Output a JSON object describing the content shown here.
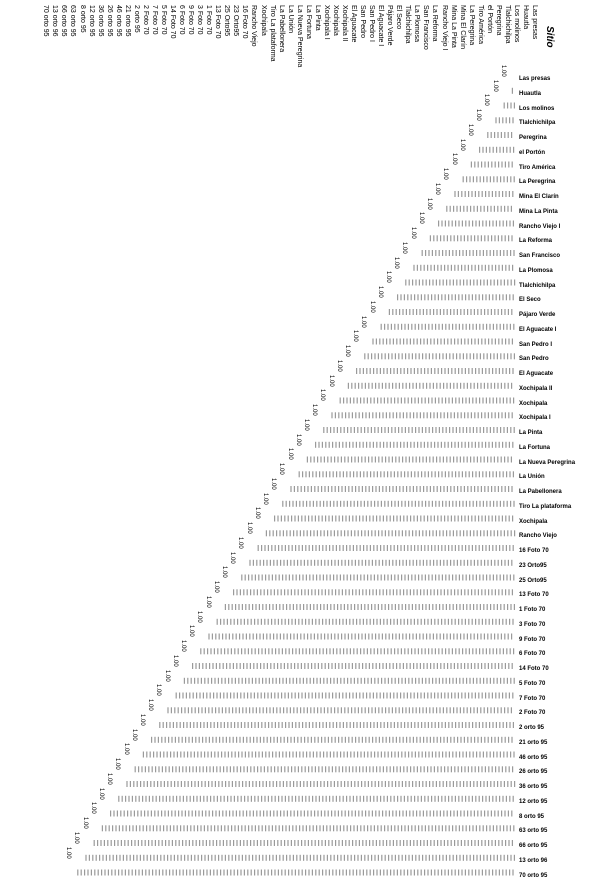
{
  "title": "Sitio",
  "highlight_color": "#f8ec1e",
  "column_headers": [
    "Las presas",
    "Huautla",
    "Los molinos",
    "Tlalchichilpa",
    "Peregrina",
    "el Portón",
    "Tiro América",
    "La Peregrina",
    "Mina El Clarín",
    "Mina La Pinta",
    "Rancho Viejo I",
    "La Reforma",
    "San Francisco",
    "La Plomosa",
    "Tlalchichilpa",
    "El Seco",
    "Pájaro Verde",
    "El Aguacate I",
    "San Pedro I",
    "San Pedro",
    "El Aguacate",
    "Xochipala II",
    "Xochipala",
    "Xochipala I",
    "La Pinta",
    "La Fortuna",
    "La Nueva Peregrina",
    "La Unión",
    "La Pabellonera",
    "Tiro La plataforma",
    "Xochipala",
    "Rancho Viejo",
    "16 Foto 70",
    "23 Orto95",
    "25 Orto95",
    "13 Foto 70",
    "1 Foto 70",
    "3 Foto 70",
    "9 Foto 70",
    "6 Foto 70",
    "14 Foto 70",
    "5 Foto 70",
    "7 Foto 70",
    "2 Foto 70",
    "2 orto 95",
    "21 orto 95",
    "46 orto 95",
    "26 orto 95",
    "36 orto 95",
    "12 orto 95",
    "8 orto 95",
    "63 orto 95",
    "66 orto 95",
    "13 orto 96",
    "70 orto 95"
  ],
  "row_labels": [
    "Las presas",
    "Huautla",
    "Los molinos",
    "Tlalchichilpa",
    "Peregrina",
    "el Portón",
    "Tiro América",
    "La Peregrina",
    "Mina El Clarín",
    "Mina La Pinta",
    "Rancho Viejo I",
    "La Reforma",
    "San Francisco",
    "La Plomosa",
    "Tlalchichilpa",
    "El Seco",
    "Pájaro Verde",
    "El Aguacate I",
    "San Pedro I",
    "San Pedro",
    "El Aguacate",
    "Xochipala II",
    "Xochipala",
    "Xochipala I",
    "La Pinta",
    "La Fortuna",
    "La Nueva Peregrina",
    "La Unión",
    "La Pabellonera",
    "Tiro La plataforma",
    "Xochipala",
    "Rancho Viejo",
    "16 Foto 70",
    "23 Orto95",
    "25 Orto95",
    "13 Foto 70",
    "1 Foto 70",
    "3 Foto 70",
    "9 Foto 70",
    "6 Foto 70",
    "14 Foto 70",
    "5 Foto 70",
    "7 Foto 70",
    "2 Foto 70",
    "2 orto 95",
    "21 orto 95",
    "46 orto 95",
    "26 orto 95",
    "36 orto 95",
    "12 orto 95",
    "8 orto 95",
    "63 orto 95",
    "66 orto 95",
    "13 orto 96",
    "70 orto 95"
  ],
  "diagonal_value": "1.00"
}
